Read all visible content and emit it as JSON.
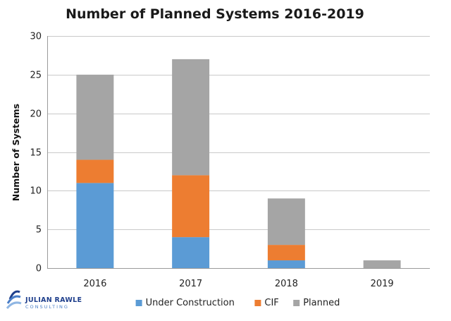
{
  "chart_data": {
    "type": "bar",
    "stacked": true,
    "title": "Number of Planned Systems 2016-2019",
    "xlabel": "",
    "ylabel": "Number of Systems",
    "categories": [
      "2016",
      "2017",
      "2018",
      "2019"
    ],
    "ylim": [
      0,
      30
    ],
    "yticks": [
      0,
      5,
      10,
      15,
      20,
      25,
      30
    ],
    "grid": true,
    "legend": "bottom",
    "series": [
      {
        "name": "Under Construction",
        "color": "#5b9bd5",
        "values": [
          11,
          4,
          1,
          0
        ]
      },
      {
        "name": "CIF",
        "color": "#ed7d31",
        "values": [
          3,
          8,
          2,
          0
        ]
      },
      {
        "name": "Planned",
        "color": "#a5a5a5",
        "values": [
          11,
          15,
          6,
          1
        ]
      }
    ]
  },
  "logo": {
    "name": "JULIAN RAWLE",
    "sub": "CONSULTING"
  }
}
